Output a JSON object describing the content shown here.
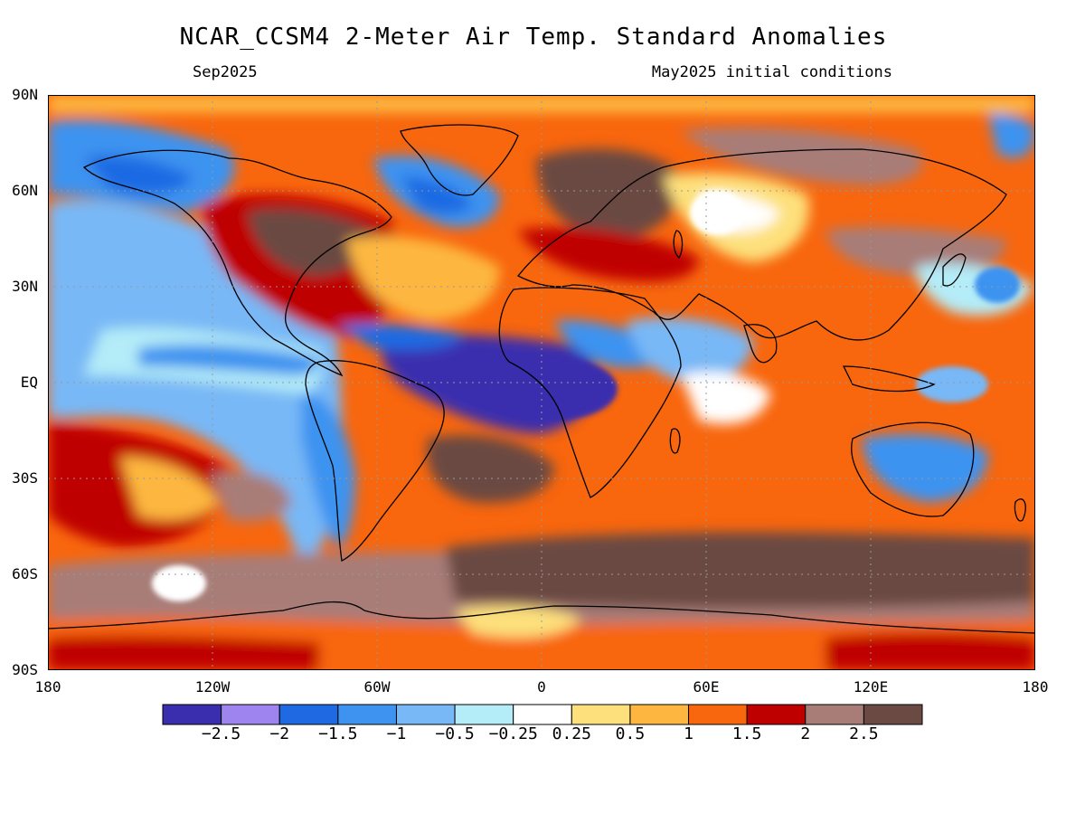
{
  "header": {
    "title": "NCAR_CCSM4 2-Meter Air Temp. Standard Anomalies",
    "valid_month": "Sep2025",
    "init": "May2025 initial conditions"
  },
  "map": {
    "latitude_labels": [
      {
        "text": "90N",
        "lat": 90
      },
      {
        "text": "60N",
        "lat": 60
      },
      {
        "text": "30N",
        "lat": 30
      },
      {
        "text": "EQ",
        "lat": 0
      },
      {
        "text": "30S",
        "lat": -30
      },
      {
        "text": "60S",
        "lat": -60
      },
      {
        "text": "90S",
        "lat": -90
      }
    ],
    "longitude_labels": [
      {
        "text": "180",
        "lon": -180
      },
      {
        "text": "120W",
        "lon": -120
      },
      {
        "text": "60W",
        "lon": -60
      },
      {
        "text": "0",
        "lon": 0
      },
      {
        "text": "60E",
        "lon": 60
      },
      {
        "text": "120E",
        "lon": 120
      },
      {
        "text": "180",
        "lon": 180
      }
    ]
  },
  "colorbar": {
    "colors": [
      "#3a2dae",
      "#9d84ee",
      "#1f6ae3",
      "#3e93f0",
      "#78b8f6",
      "#b4ecf8",
      "#ffffff",
      "#fde07c",
      "#fdb741",
      "#f8660d",
      "#bf0000",
      "#a87d78",
      "#6b4a43"
    ],
    "tick_labels": [
      "-2.5",
      "-2",
      "-1.5",
      "-1",
      "-0.5",
      "-0.25",
      "0.25",
      "0.5",
      "1",
      "1.5",
      "2",
      "2.5"
    ]
  }
}
